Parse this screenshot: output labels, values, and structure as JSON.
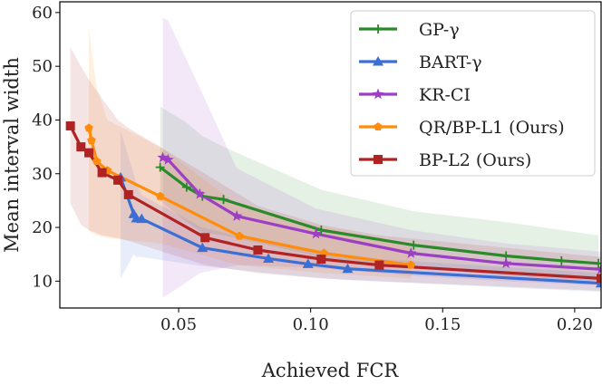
{
  "chart_data": {
    "type": "line",
    "title": "",
    "xlabel": "Achieved FCR",
    "ylabel": "Mean interval width",
    "xlim": [
      0.005,
      0.21
    ],
    "ylim": [
      5,
      62
    ],
    "xticks": [
      0.05,
      0.1,
      0.15,
      0.2
    ],
    "xtick_labels": [
      "0.05",
      "0.10",
      "0.15",
      "0.20"
    ],
    "yticks": [
      10,
      20,
      30,
      40,
      50,
      60
    ],
    "ytick_labels": [
      "10",
      "20",
      "30",
      "40",
      "50",
      "60"
    ],
    "legend_position": "top-right",
    "series": [
      {
        "name": "GP-γ",
        "color": "#2a8a2a",
        "marker": "plus",
        "x": [
          0.043,
          0.053,
          0.059,
          0.067,
          0.104,
          0.139,
          0.174,
          0.195,
          0.209
        ],
        "y": [
          31.2,
          27.5,
          25.8,
          25.2,
          19.5,
          16.7,
          14.7,
          13.8,
          13.3
        ],
        "band_upper": [
          42.5,
          39.5,
          37.0,
          35.0,
          27.0,
          23.0,
          21.0,
          19.5,
          18.5
        ],
        "band_lower": [
          25.0,
          21.0,
          19.0,
          18.5,
          14.5,
          12.5,
          11.0,
          10.3,
          10.0
        ]
      },
      {
        "name": "BART-γ",
        "color": "#3b6fd4",
        "marker": "triangle",
        "x": [
          0.028,
          0.033,
          0.034,
          0.036,
          0.059,
          0.084,
          0.099,
          0.114,
          0.21
        ],
        "y": [
          29.3,
          22.5,
          21.7,
          21.6,
          16.2,
          14.2,
          13.2,
          12.3,
          9.6
        ],
        "band_upper": [
          38.0,
          30.0,
          28.0,
          26.0,
          20.0,
          17.0,
          15.5,
          14.5,
          11.5
        ],
        "band_lower": [
          10.5,
          15.0,
          14.5,
          14.5,
          12.8,
          11.5,
          10.8,
          10.2,
          8.0
        ]
      },
      {
        "name": "KR-CI",
        "color": "#9b3fc4",
        "marker": "star",
        "x": [
          0.044,
          0.046,
          0.058,
          0.072,
          0.102,
          0.138,
          0.174,
          0.21
        ],
        "y": [
          33.0,
          32.6,
          26.2,
          22.1,
          18.8,
          15.2,
          13.3,
          12.2
        ],
        "band_upper": [
          59.0,
          58.5,
          46.0,
          31.0,
          23.5,
          19.5,
          17.0,
          15.5
        ],
        "band_lower": [
          7.0,
          7.5,
          11.5,
          13.0,
          12.5,
          11.0,
          10.0,
          9.2
        ]
      },
      {
        "name": "QR/BP-L1 (Ours)",
        "color": "#ff8c0a",
        "marker": "pentagon",
        "x": [
          0.016,
          0.017,
          0.019,
          0.023,
          0.043,
          0.073,
          0.105,
          0.138
        ],
        "y": [
          38.5,
          36.2,
          32.3,
          30.6,
          25.8,
          18.4,
          15.2,
          13.0
        ],
        "band_upper": [
          57.5,
          53.0,
          46.0,
          40.0,
          35.0,
          24.0,
          20.0,
          17.0
        ],
        "band_lower": [
          19.5,
          19.0,
          18.5,
          18.0,
          17.0,
          13.0,
          11.5,
          10.5
        ]
      },
      {
        "name": "BP-L2 (Ours)",
        "color": "#b02323",
        "marker": "square",
        "x": [
          0.009,
          0.013,
          0.016,
          0.021,
          0.027,
          0.031,
          0.06,
          0.08,
          0.104,
          0.126,
          0.21
        ],
        "y": [
          38.9,
          35.0,
          33.9,
          30.2,
          28.8,
          26.1,
          18.1,
          15.8,
          14.1,
          13.0,
          10.5
        ],
        "band_upper": [
          53.5,
          50.0,
          47.5,
          44.0,
          40.0,
          38.5,
          30.0,
          24.0,
          20.5,
          18.5,
          14.5
        ],
        "band_lower": [
          24.5,
          20.5,
          19.5,
          18.5,
          18.0,
          17.5,
          13.0,
          11.5,
          10.5,
          10.0,
          8.2
        ]
      }
    ]
  }
}
